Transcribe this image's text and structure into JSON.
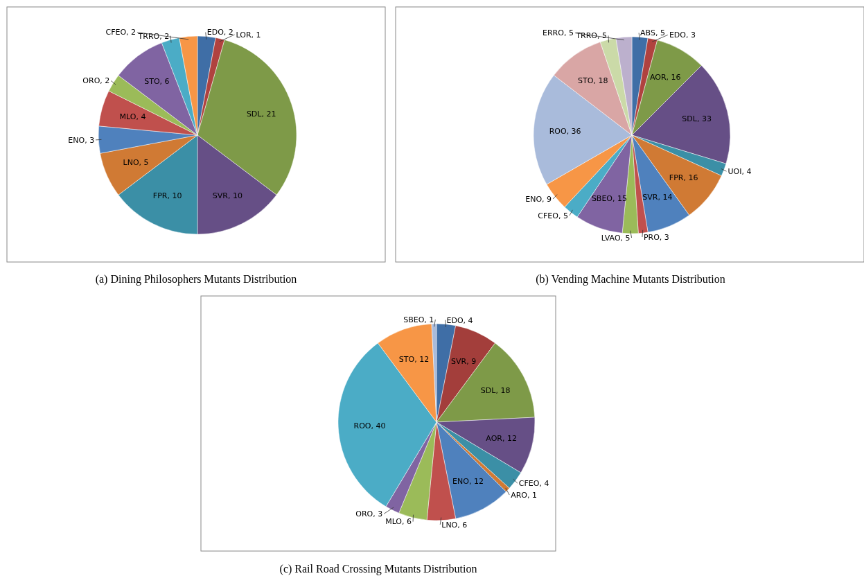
{
  "chart_data": [
    {
      "type": "pie",
      "title": "(a) Dining Philosophers Mutants Distribution",
      "categories": [
        "EDO",
        "LOR",
        "SDL",
        "SVR",
        "FPR",
        "LNO",
        "ENO",
        "MLO",
        "ORO",
        "STO",
        "TRRO",
        "CFEO"
      ],
      "values": [
        2,
        1,
        21,
        10,
        10,
        5,
        3,
        4,
        2,
        6,
        2,
        2
      ],
      "colors": [
        "#3f6ea6",
        "#b0423f",
        "#7e9a48",
        "#664f86",
        "#3b8fa6",
        "#d07a34",
        "#4f81bd",
        "#c0504d",
        "#9bbb59",
        "#8064a2",
        "#4bacc6",
        "#f79646"
      ],
      "value_labels": [
        ", 2",
        ", 1",
        ", 21",
        ", 10",
        ", 10",
        ", 5",
        ", 3",
        ", 4",
        ", 2",
        ", 6",
        ", 2",
        ", 2"
      ]
    },
    {
      "type": "pie",
      "title": "(b) Vending Machine Mutants Distribution",
      "categories": [
        "ABS",
        "EDO",
        "AOR",
        "SDL",
        "UOI",
        "FPR",
        "SVR",
        "PRO",
        "LVAO",
        "SBEO",
        "CFEO",
        "ENO",
        "ROO",
        "STO",
        "TRRO",
        "ERRO"
      ],
      "values": [
        5,
        3,
        16,
        33,
        4,
        16,
        14,
        3,
        5,
        15,
        5,
        9,
        36,
        18,
        5,
        5
      ],
      "colors": [
        "#3f6ea6",
        "#b0423f",
        "#7e9a48",
        "#664f86",
        "#3b8fa6",
        "#d07a34",
        "#4f81bd",
        "#c0504d",
        "#9bbb59",
        "#8064a2",
        "#4bacc6",
        "#f79646",
        "#a9bbdb",
        "#d9a6a5",
        "#cbdaa8",
        "#bcb0cd"
      ],
      "value_labels": [
        ", 5",
        ", 3",
        ", 16",
        ", 33",
        ", 4",
        ", 16",
        ", 14",
        ", 3",
        ", 5",
        ", 15",
        ", 5",
        ", 9",
        ", 36",
        ", 18",
        ", 5",
        ", 5"
      ]
    },
    {
      "type": "pie",
      "title": "(c) Rail Road Crossing Mutants Distribution",
      "categories": [
        "EDO",
        "SVR",
        "SDL",
        "AOR",
        "CFEO",
        "ARO",
        "ENO",
        "LNO",
        "MLO",
        "ORO",
        "ROO",
        "STO",
        "SBEO"
      ],
      "values": [
        4,
        9,
        18,
        12,
        4,
        1,
        12,
        6,
        6,
        3,
        40,
        12,
        1
      ],
      "colors": [
        "#3f6ea6",
        "#a33e3b",
        "#7e9a48",
        "#664f86",
        "#3b8fa6",
        "#d07a34",
        "#4f81bd",
        "#c0504d",
        "#9bbb59",
        "#8064a2",
        "#4bacc6",
        "#f79646",
        "#a9bbdb"
      ],
      "value_labels": [
        ", 4",
        ", 9",
        ", 18",
        ", 12",
        ", 4",
        ", 1",
        ", 12",
        ", 6",
        ", 6",
        ", 3",
        ", 40",
        ", 12",
        ", 1"
      ]
    }
  ]
}
